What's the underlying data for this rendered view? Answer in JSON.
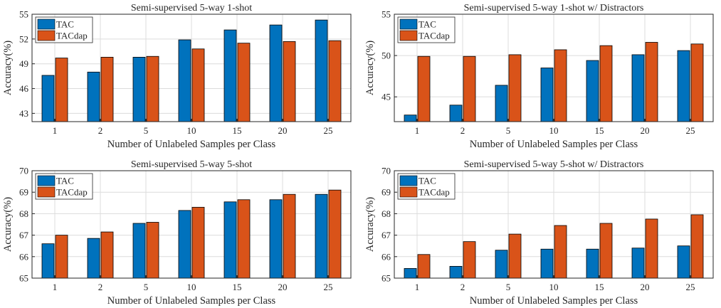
{
  "chart_data": [
    {
      "type": "bar",
      "title": "Semi-supervised 5-way 1-shot",
      "xlabel": "Number of Unlabeled Samples per Class",
      "ylabel": "Accuracy(%)",
      "categories": [
        "1",
        "2",
        "5",
        "10",
        "15",
        "20",
        "25"
      ],
      "ylim": [
        42,
        55
      ],
      "yticks": [
        "43",
        "46",
        "49",
        "52",
        "55"
      ],
      "grid": true,
      "legend": "top-left",
      "series": [
        {
          "name": "TAC",
          "color": "#0072BD",
          "values": [
            47.6,
            48.0,
            49.8,
            51.9,
            53.1,
            53.7,
            54.3
          ]
        },
        {
          "name": "TACdap",
          "color": "#D95319",
          "values": [
            49.7,
            49.8,
            49.9,
            50.8,
            51.5,
            51.7,
            51.8
          ]
        }
      ]
    },
    {
      "type": "bar",
      "title": "Semi-supervised 5-way 1-shot w/ Distractors",
      "xlabel": "Number of Unlabeled Samples per Class",
      "ylabel": "Accuracy(%)",
      "categories": [
        "1",
        "2",
        "5",
        "10",
        "15",
        "20",
        "25"
      ],
      "ylim": [
        42,
        55
      ],
      "yticks": [
        "45",
        "50",
        "55"
      ],
      "grid": true,
      "legend": "top-left",
      "series": [
        {
          "name": "TAC",
          "color": "#0072BD",
          "values": [
            42.8,
            44.0,
            46.4,
            48.5,
            49.4,
            50.1,
            50.6
          ]
        },
        {
          "name": "TACdap",
          "color": "#D95319",
          "values": [
            49.9,
            49.9,
            50.1,
            50.7,
            51.2,
            51.6,
            51.4
          ]
        }
      ]
    },
    {
      "type": "bar",
      "title": "Semi-supervised 5-way 5-shot",
      "xlabel": "Number of Unlabeled Samples per Class",
      "ylabel": "Accuracy(%)",
      "categories": [
        "1",
        "2",
        "5",
        "10",
        "15",
        "20",
        "25"
      ],
      "ylim": [
        65,
        70
      ],
      "yticks": [
        "65",
        "66",
        "67",
        "68",
        "69",
        "70"
      ],
      "grid": true,
      "legend": "top-left",
      "series": [
        {
          "name": "TAC",
          "color": "#0072BD",
          "values": [
            66.6,
            66.85,
            67.55,
            68.15,
            68.55,
            68.65,
            68.9
          ]
        },
        {
          "name": "TACdap",
          "color": "#D95319",
          "values": [
            67.0,
            67.15,
            67.6,
            68.3,
            68.65,
            68.9,
            69.1
          ]
        }
      ]
    },
    {
      "type": "bar",
      "title": "Semi-supervised 5-way 5-shot w/ Distractors",
      "xlabel": "Number of Unlabeled Samples per Class",
      "ylabel": "Accuracy(%)",
      "categories": [
        "1",
        "2",
        "5",
        "10",
        "15",
        "20",
        "25"
      ],
      "ylim": [
        65,
        70
      ],
      "yticks": [
        "65",
        "66",
        "67",
        "68",
        "69",
        "70"
      ],
      "grid": true,
      "legend": "top-left",
      "series": [
        {
          "name": "TAC",
          "color": "#0072BD",
          "values": [
            65.45,
            65.55,
            66.3,
            66.35,
            66.35,
            66.4,
            66.5
          ]
        },
        {
          "name": "TACdap",
          "color": "#D95319",
          "values": [
            66.1,
            66.7,
            67.05,
            67.45,
            67.55,
            67.75,
            67.95
          ]
        }
      ]
    }
  ]
}
